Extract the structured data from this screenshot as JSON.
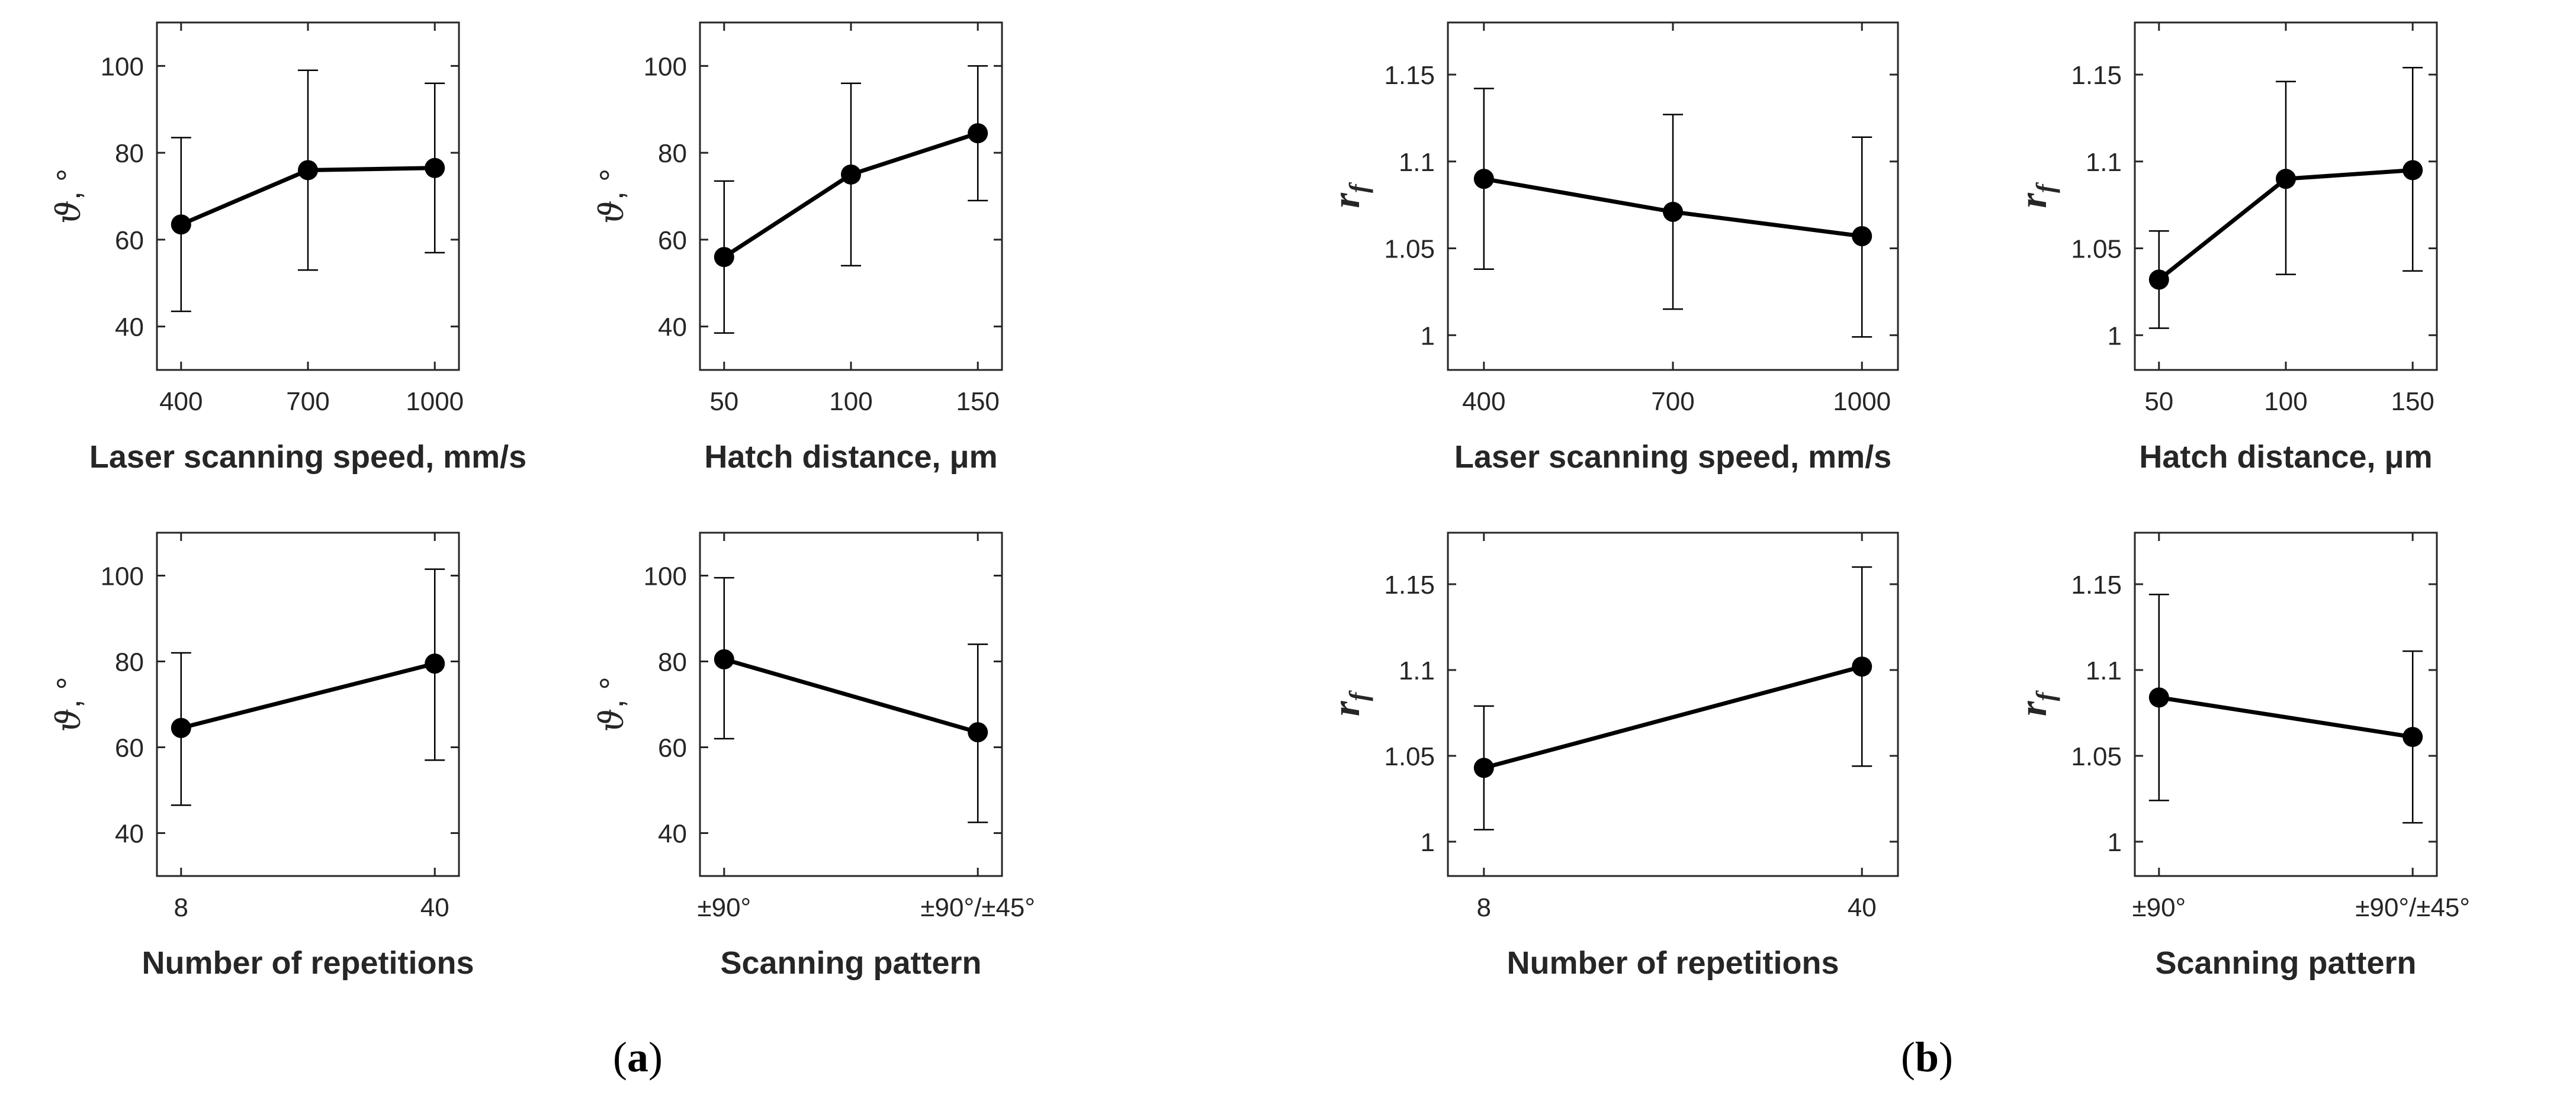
{
  "figure_labels": {
    "a": "a",
    "b": "b",
    "open": "(",
    "close": ")"
  },
  "chart_data": [
    {
      "id": "a1",
      "type": "line",
      "group": "a",
      "ylabel_main": "ϑ",
      "ylabel_sub": "",
      "ylabel_suffix": ", °",
      "xlabel": "Laser scanning speed, mm/s",
      "categories": [
        "400",
        "700",
        "1000"
      ],
      "values": [
        63.5,
        76,
        76.5
      ],
      "err_low": [
        43.5,
        53,
        57
      ],
      "err_high": [
        83.5,
        99,
        96
      ],
      "ylim": [
        30,
        110
      ],
      "yticks": [
        40,
        60,
        80,
        100
      ],
      "ytick_labels": [
        "40",
        "60",
        "80",
        "100"
      ]
    },
    {
      "id": "a2",
      "type": "line",
      "group": "a",
      "ylabel_main": "ϑ",
      "ylabel_sub": "",
      "ylabel_suffix": ", °",
      "xlabel": "Hatch distance, μm",
      "categories": [
        "50",
        "100",
        "150"
      ],
      "values": [
        56,
        75,
        84.5
      ],
      "err_low": [
        38.5,
        54,
        69
      ],
      "err_high": [
        73.5,
        96,
        100
      ],
      "ylim": [
        30,
        110
      ],
      "yticks": [
        40,
        60,
        80,
        100
      ],
      "ytick_labels": [
        "40",
        "60",
        "80",
        "100"
      ]
    },
    {
      "id": "b1",
      "type": "line",
      "group": "b",
      "ylabel_main": "r",
      "ylabel_sub": "f",
      "ylabel_suffix": "",
      "xlabel": "Laser scanning speed, mm/s",
      "categories": [
        "400",
        "700",
        "1000"
      ],
      "values": [
        1.09,
        1.071,
        1.057
      ],
      "err_low": [
        1.038,
        1.015,
        0.999
      ],
      "err_high": [
        1.142,
        1.127,
        1.114
      ],
      "ylim": [
        0.98,
        1.18
      ],
      "yticks": [
        1,
        1.05,
        1.1,
        1.15
      ],
      "ytick_labels": [
        "1",
        "1.05",
        "1.1",
        "1.15"
      ]
    },
    {
      "id": "b2",
      "type": "line",
      "group": "b",
      "ylabel_main": "r",
      "ylabel_sub": "f",
      "ylabel_suffix": "",
      "xlabel": "Hatch distance, μm",
      "categories": [
        "50",
        "100",
        "150"
      ],
      "values": [
        1.032,
        1.09,
        1.095
      ],
      "err_low": [
        1.004,
        1.035,
        1.037
      ],
      "err_high": [
        1.06,
        1.146,
        1.154
      ],
      "ylim": [
        0.98,
        1.18
      ],
      "yticks": [
        1,
        1.05,
        1.1,
        1.15
      ],
      "ytick_labels": [
        "1",
        "1.05",
        "1.1",
        "1.15"
      ]
    },
    {
      "id": "a3",
      "type": "line",
      "group": "a",
      "ylabel_main": "ϑ",
      "ylabel_sub": "",
      "ylabel_suffix": ", °",
      "xlabel": "Number of repetitions",
      "categories": [
        "8",
        "40"
      ],
      "values": [
        64.5,
        79.5
      ],
      "err_low": [
        46.5,
        57
      ],
      "err_high": [
        82,
        101.5
      ],
      "ylim": [
        30,
        110
      ],
      "yticks": [
        40,
        60,
        80,
        100
      ],
      "ytick_labels": [
        "40",
        "60",
        "80",
        "100"
      ]
    },
    {
      "id": "a4",
      "type": "line",
      "group": "a",
      "ylabel_main": "ϑ",
      "ylabel_sub": "",
      "ylabel_suffix": ", °",
      "xlabel": "Scanning pattern",
      "categories": [
        "±90°",
        "±90°/±45°"
      ],
      "values": [
        80.5,
        63.5
      ],
      "err_low": [
        62,
        42.5
      ],
      "err_high": [
        99.5,
        84
      ],
      "ylim": [
        30,
        110
      ],
      "yticks": [
        40,
        60,
        80,
        100
      ],
      "ytick_labels": [
        "40",
        "60",
        "80",
        "100"
      ]
    },
    {
      "id": "b3",
      "type": "line",
      "group": "b",
      "ylabel_main": "r",
      "ylabel_sub": "f",
      "ylabel_suffix": "",
      "xlabel": "Number of repetitions",
      "categories": [
        "8",
        "40"
      ],
      "values": [
        1.043,
        1.102
      ],
      "err_low": [
        1.007,
        1.044
      ],
      "err_high": [
        1.079,
        1.16
      ],
      "ylim": [
        0.98,
        1.18
      ],
      "yticks": [
        1,
        1.05,
        1.1,
        1.15
      ],
      "ytick_labels": [
        "1",
        "1.05",
        "1.1",
        "1.15"
      ]
    },
    {
      "id": "b4",
      "type": "line",
      "group": "b",
      "ylabel_main": "r",
      "ylabel_sub": "f",
      "ylabel_suffix": "",
      "xlabel": "Scanning pattern",
      "categories": [
        "±90°",
        "±90°/±45°"
      ],
      "values": [
        1.084,
        1.061
      ],
      "err_low": [
        1.024,
        1.011
      ],
      "err_high": [
        1.144,
        1.111
      ],
      "ylim": [
        0.98,
        1.18
      ],
      "yticks": [
        1,
        1.05,
        1.1,
        1.15
      ],
      "ytick_labels": [
        "1",
        "1.05",
        "1.1",
        "1.15"
      ]
    }
  ]
}
